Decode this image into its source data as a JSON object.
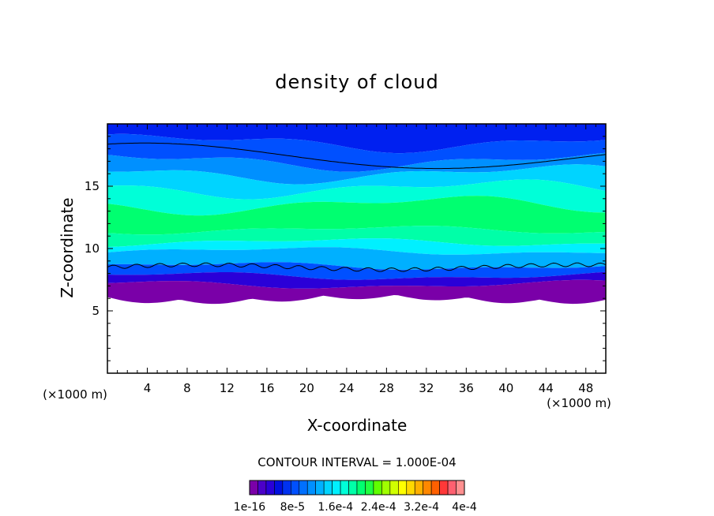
{
  "chart_data": {
    "type": "heatmap",
    "title": "density of cloud",
    "xlabel": "X-coordinate",
    "ylabel": "Z-coordinate",
    "x_unit": "(×1000 m)",
    "y_unit": "(×1000 m)",
    "xlim": [
      0,
      50
    ],
    "ylim": [
      0,
      20
    ],
    "xticks": [
      4,
      8,
      12,
      16,
      20,
      24,
      28,
      32,
      36,
      40,
      44,
      48
    ],
    "yticks": [
      5,
      10,
      15
    ],
    "contour_interval_text": "CONTOUR INTERVAL = 1.000E-04",
    "colorbar": {
      "labels": [
        "1e-16",
        "8e-5",
        "1.6e-4",
        "2.4e-4",
        "3.2e-4",
        "4e-4"
      ],
      "colors": [
        "#7a00a8",
        "#4b00c8",
        "#2a00d8",
        "#0010e0",
        "#0032f0",
        "#0050ff",
        "#0070ff",
        "#0090ff",
        "#00b0ff",
        "#00d4ff",
        "#00f0ff",
        "#00ffd8",
        "#00ffa8",
        "#00ff70",
        "#20ff40",
        "#60ff00",
        "#a0ff00",
        "#d0ff00",
        "#ffff00",
        "#ffd800",
        "#ffb000",
        "#ff8800",
        "#ff6000",
        "#ff3838",
        "#ff6070",
        "#ff9090"
      ]
    },
    "layers": [
      {
        "name": "dark-blue-top",
        "color": "#0020f0",
        "z_bottom": 18.5,
        "z_top": 20
      },
      {
        "name": "blue",
        "color": "#0050ff",
        "z_bottom": 17.0,
        "z_top": 18.5
      },
      {
        "name": "light-blue",
        "color": "#0090ff",
        "z_bottom": 16.0,
        "z_top": 17.0
      },
      {
        "name": "cyan-upper",
        "color": "#00d4ff",
        "z_bottom": 14.8,
        "z_top": 16.0
      },
      {
        "name": "aqua-upper",
        "color": "#00ffd8",
        "z_bottom": 13.5,
        "z_top": 14.8
      },
      {
        "name": "green-core",
        "color": "#00ff70",
        "z_bottom": 11.5,
        "z_top": 13.5
      },
      {
        "name": "aqua-lower",
        "color": "#00ffa8",
        "z_bottom": 10.5,
        "z_top": 11.5
      },
      {
        "name": "cyan-lower",
        "color": "#00f0ff",
        "z_bottom": 9.8,
        "z_top": 10.5
      },
      {
        "name": "sky-blue",
        "color": "#00b0ff",
        "z_bottom": 8.6,
        "z_top": 9.8
      },
      {
        "name": "mid-blue",
        "color": "#0050ff",
        "z_bottom": 7.8,
        "z_top": 8.6
      },
      {
        "name": "deep-blue",
        "color": "#2a00d8",
        "z_bottom": 7.1,
        "z_top": 7.8
      },
      {
        "name": "violet-base",
        "color": "#7a00a8",
        "z_bottom": 6.1,
        "z_top": 7.1
      }
    ]
  }
}
